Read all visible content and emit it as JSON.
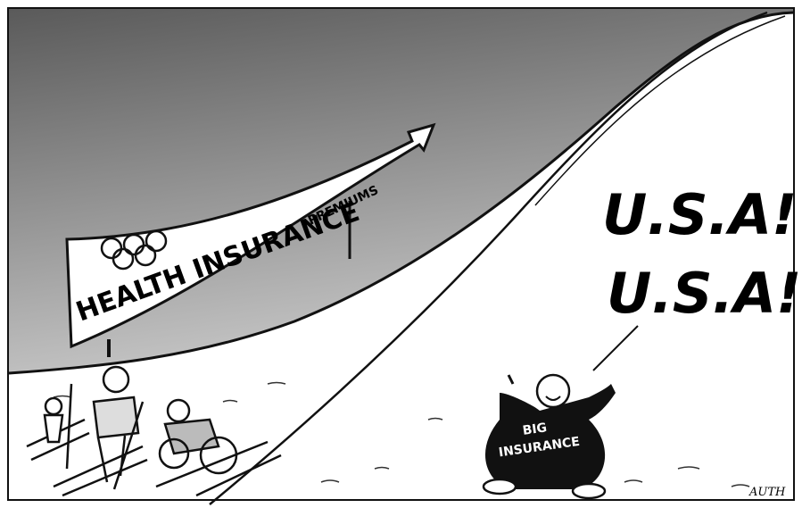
{
  "banner": {
    "text": "HEALTH INSURANCE",
    "small_text": "PREMIUMS"
  },
  "speech": {
    "lines": [
      "U.S.A!",
      "U.S.A!"
    ]
  },
  "character": {
    "shirt": [
      "BIG",
      "INSURANCE"
    ]
  },
  "signature": "AUTH"
}
